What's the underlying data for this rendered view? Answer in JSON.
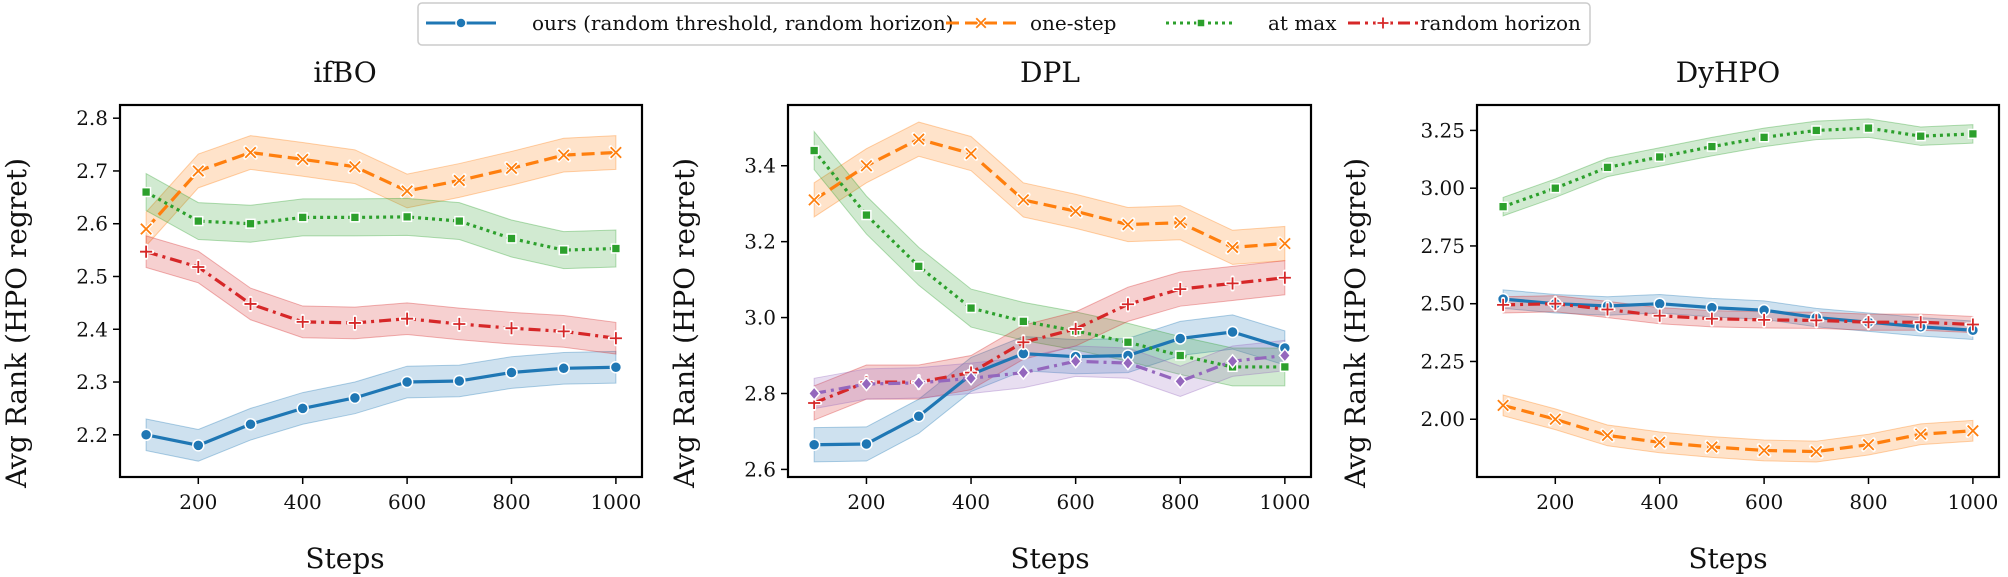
{
  "legend": {
    "entries": [
      {
        "label": "ours (random threshold, random horizon)",
        "series": "ours"
      },
      {
        "label": "one-step",
        "series": "onestep"
      },
      {
        "label": "at max",
        "series": "atmax"
      },
      {
        "label": "random horizon",
        "series": "randhor"
      }
    ]
  },
  "colors": {
    "ours": "#1f77b4",
    "onestep": "#ff7f0e",
    "atmax": "#2ca02c",
    "randhor": "#d62728",
    "extra": "#9467bd"
  },
  "chart_data": [
    {
      "type": "line",
      "title": "ifBO",
      "xlabel": "Steps",
      "ylabel": "Avg Rank (HPO regret)",
      "xlim": [
        50,
        1050
      ],
      "ylim": [
        2.12,
        2.825
      ],
      "xticks": [
        200,
        400,
        600,
        800,
        1000
      ],
      "xtick_labels": [
        "200",
        "400",
        "600",
        "800",
        "1000"
      ],
      "yticks": [
        2.2,
        2.3,
        2.4,
        2.5,
        2.6,
        2.7,
        2.8
      ],
      "ytick_labels": [
        "2.2",
        "2.3",
        "2.4",
        "2.5",
        "2.6",
        "2.7",
        "2.8"
      ],
      "x": [
        100,
        200,
        300,
        400,
        500,
        600,
        700,
        800,
        900,
        1000
      ],
      "series": [
        {
          "key": "ours",
          "name": "ours (random threshold, random horizon)",
          "marker": "circle",
          "dash": "solid",
          "values": [
            2.2,
            2.18,
            2.22,
            2.25,
            2.27,
            2.3,
            2.302,
            2.318,
            2.326,
            2.328
          ],
          "band": 0.03
        },
        {
          "key": "onestep",
          "name": "one-step",
          "marker": "x",
          "dash": "dashed",
          "values": [
            2.59,
            2.7,
            2.735,
            2.722,
            2.708,
            2.662,
            2.682,
            2.705,
            2.73,
            2.735
          ],
          "band": 0.032
        },
        {
          "key": "atmax",
          "name": "at max",
          "marker": "square",
          "dash": "dotted",
          "values": [
            2.66,
            2.605,
            2.6,
            2.612,
            2.612,
            2.613,
            2.605,
            2.572,
            2.55,
            2.553
          ],
          "band": 0.035
        },
        {
          "key": "randhor",
          "name": "random horizon",
          "marker": "plus",
          "dash": "dashdot",
          "values": [
            2.547,
            2.518,
            2.448,
            2.414,
            2.412,
            2.42,
            2.41,
            2.402,
            2.396,
            2.383
          ],
          "band": 0.03
        }
      ]
    },
    {
      "type": "line",
      "title": "DPL",
      "xlabel": "Steps",
      "ylabel": "Avg Rank (HPO regret)",
      "xlim": [
        50,
        1050
      ],
      "ylim": [
        2.58,
        3.56
      ],
      "xticks": [
        200,
        400,
        600,
        800,
        1000
      ],
      "xtick_labels": [
        "200",
        "400",
        "600",
        "800",
        "1000"
      ],
      "yticks": [
        2.6,
        2.8,
        3.0,
        3.2,
        3.4
      ],
      "ytick_labels": [
        "2.6",
        "2.8",
        "3.0",
        "3.2",
        "3.4"
      ],
      "x": [
        100,
        200,
        300,
        400,
        500,
        600,
        700,
        800,
        900,
        1000
      ],
      "series": [
        {
          "key": "ours",
          "name": "ours (random threshold, random horizon)",
          "marker": "circle",
          "dash": "solid",
          "values": [
            2.665,
            2.667,
            2.74,
            2.85,
            2.905,
            2.897,
            2.9,
            2.945,
            2.962,
            2.92
          ],
          "band": 0.045
        },
        {
          "key": "onestep",
          "name": "one-step",
          "marker": "x",
          "dash": "dashed",
          "values": [
            3.31,
            3.4,
            3.47,
            3.432,
            3.31,
            3.28,
            3.245,
            3.25,
            3.185,
            3.195
          ],
          "band": 0.045
        },
        {
          "key": "atmax",
          "name": "at max",
          "marker": "square",
          "dash": "dotted",
          "values": [
            3.44,
            3.27,
            3.135,
            3.025,
            2.99,
            2.965,
            2.935,
            2.9,
            2.87,
            2.87
          ],
          "band": 0.05
        },
        {
          "key": "randhor",
          "name": "random horizon",
          "marker": "plus",
          "dash": "dashdot",
          "values": [
            2.775,
            2.83,
            2.83,
            2.855,
            2.935,
            2.97,
            3.035,
            3.075,
            3.09,
            3.105
          ],
          "band": 0.045
        },
        {
          "key": "extra",
          "name": "",
          "marker": "diamond",
          "dash": "dashdot",
          "values": [
            2.8,
            2.825,
            2.828,
            2.84,
            2.855,
            2.885,
            2.88,
            2.832,
            2.885,
            2.9
          ],
          "band": 0.04
        }
      ]
    },
    {
      "type": "line",
      "title": "DyHPO",
      "xlabel": "Steps",
      "ylabel": "Avg Rank (HPO regret)",
      "xlim": [
        50,
        1050
      ],
      "ylim": [
        1.75,
        3.36
      ],
      "xticks": [
        200,
        400,
        600,
        800,
        1000
      ],
      "xtick_labels": [
        "200",
        "400",
        "600",
        "800",
        "1000"
      ],
      "yticks": [
        2.0,
        2.25,
        2.5,
        2.75,
        3.0,
        3.25
      ],
      "ytick_labels": [
        "2.00",
        "2.25",
        "2.50",
        "2.75",
        "3.00",
        "3.25"
      ],
      "x": [
        100,
        200,
        300,
        400,
        500,
        600,
        700,
        800,
        900,
        1000
      ],
      "series": [
        {
          "key": "ours",
          "name": "ours (random threshold, random horizon)",
          "marker": "circle",
          "dash": "solid",
          "values": [
            2.52,
            2.5,
            2.49,
            2.5,
            2.483,
            2.472,
            2.44,
            2.42,
            2.4,
            2.385
          ],
          "band": 0.04
        },
        {
          "key": "onestep",
          "name": "one-step",
          "marker": "x",
          "dash": "dashed",
          "values": [
            2.06,
            2.0,
            1.93,
            1.9,
            1.88,
            1.865,
            1.86,
            1.89,
            1.935,
            1.95
          ],
          "band": 0.045
        },
        {
          "key": "atmax",
          "name": "at max",
          "marker": "square",
          "dash": "dotted",
          "values": [
            2.92,
            3.0,
            3.09,
            3.135,
            3.18,
            3.22,
            3.25,
            3.26,
            3.225,
            3.235
          ],
          "band": 0.04
        },
        {
          "key": "randhor",
          "name": "random horizon",
          "marker": "plus",
          "dash": "dashdot",
          "values": [
            2.495,
            2.5,
            2.475,
            2.448,
            2.435,
            2.43,
            2.428,
            2.42,
            2.42,
            2.41
          ],
          "band": 0.035
        }
      ]
    }
  ]
}
